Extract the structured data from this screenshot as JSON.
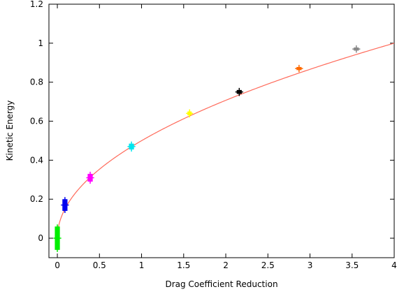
{
  "chart_data": {
    "type": "scatter",
    "xlabel": "Drag Coefficient Reduction",
    "ylabel": "Kinetic Energy",
    "xlim": [
      -0.1,
      4
    ],
    "ylim": [
      -0.1,
      1.2
    ],
    "x_ticks": [
      "0",
      "0.5",
      "1",
      "1.5",
      "2",
      "2.5",
      "3",
      "3.5",
      "4"
    ],
    "y_ticks": [
      "0",
      "0.2",
      "0.4",
      "0.6",
      "0.8",
      "1",
      "1.2"
    ],
    "grid": false,
    "legend": "none",
    "colors": {
      "fit_line": "#ff6a5a",
      "axes": "#000000"
    },
    "fit": {
      "formula": "0.5*sqrt(x)",
      "x_range": [
        0,
        4
      ],
      "color": "#ff6a5a"
    },
    "points": [
      {
        "x": 0.0,
        "y": 0.0,
        "xerr": 0.03,
        "yerr": 0.06,
        "color": "#00ee00"
      },
      {
        "x": 0.09,
        "y": 0.17,
        "xerr": 0.03,
        "yerr": 0.03,
        "color": "#0000ee"
      },
      {
        "x": 0.39,
        "y": 0.31,
        "xerr": 0.03,
        "yerr": 0.02,
        "color": "#ff00ff"
      },
      {
        "x": 0.88,
        "y": 0.47,
        "xerr": 0.03,
        "yerr": 0.015,
        "color": "#00e5ee"
      },
      {
        "x": 1.57,
        "y": 0.64,
        "xerr": 0.025,
        "yerr": 0.01,
        "color": "#ffff00"
      },
      {
        "x": 2.16,
        "y": 0.75,
        "xerr": 0.03,
        "yerr": 0.01,
        "color": "#000000"
      },
      {
        "x": 2.87,
        "y": 0.87,
        "xerr": 0.03,
        "yerr": 0.008,
        "color": "#ff6a00"
      },
      {
        "x": 3.55,
        "y": 0.97,
        "xerr": 0.03,
        "yerr": 0.008,
        "color": "#888888"
      }
    ]
  }
}
